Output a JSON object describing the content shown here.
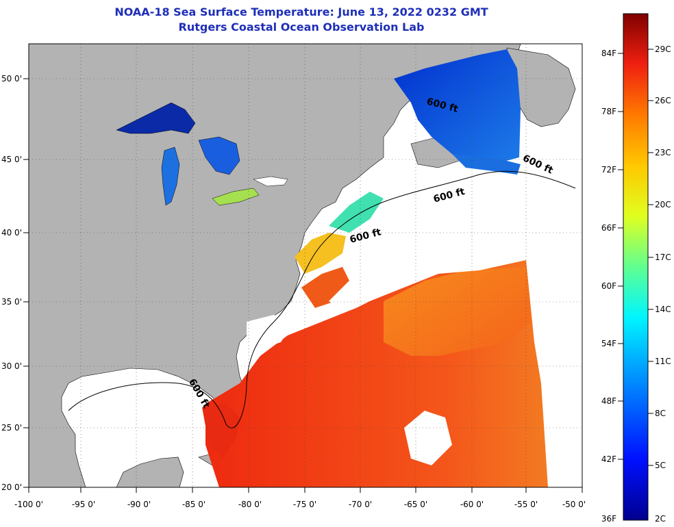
{
  "title": {
    "line1": "NOAA-18 Sea Surface Temperature:  June 13, 2022 0232 GMT",
    "line2": "Rutgers Coastal Ocean Observation Lab"
  },
  "map": {
    "lon_ticks": [
      "-100 0'",
      "-95 0'",
      "-90 0'",
      "-85 0'",
      "-80 0'",
      "-75 0'",
      "-70 0'",
      "-65 0'",
      "-60 0'",
      "-55 0'",
      "-50 0'"
    ],
    "lat_ticks": [
      "50 0'",
      "45 0'",
      "40 0'",
      "35 0'",
      "30 0'",
      "25 0'",
      "20 0'"
    ],
    "contour_label": "600 ft",
    "colors": {
      "land": "#b3b3b3",
      "cloud": "#ffffff",
      "title": "#1f2fb8"
    }
  },
  "colorbar": {
    "fahrenheit": [
      "84F",
      "78F",
      "72F",
      "66F",
      "60F",
      "54F",
      "48F",
      "42F",
      "36F"
    ],
    "celsius": [
      "29C",
      "26C",
      "23C",
      "20C",
      "17C",
      "14C",
      "11C",
      "8C",
      "5C",
      "2C"
    ]
  }
}
